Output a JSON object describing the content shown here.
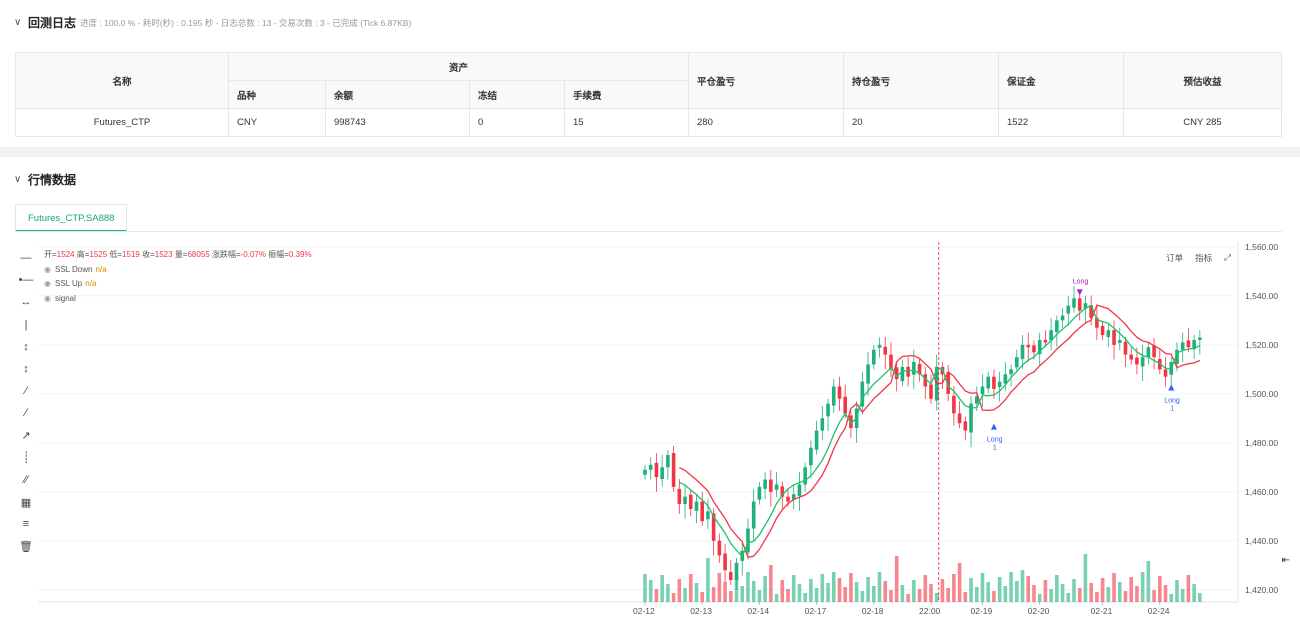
{
  "log": {
    "title": "回测日志",
    "subtitle": "进度 : 100.0 % - 耗时(秒) : 0.195 秒 - 日志总数 : 13 - 交易次数 : 3 - 已完成 (Tick 6.87KB)",
    "headers": {
      "name": "名称",
      "assets": "资产",
      "variety": "品种",
      "balance": "余额",
      "frozen": "冻结",
      "fee": "手续费",
      "close_pl": "平仓盈亏",
      "pos_pl": "持仓盈亏",
      "margin": "保证金",
      "est": "预估收益"
    },
    "row": {
      "name": "Futures_CTP",
      "variety": "CNY",
      "balance": "998743",
      "frozen": "0",
      "fee": "15",
      "close_pl": "280",
      "pos_pl": "20",
      "margin": "1522",
      "est": "CNY 285"
    }
  },
  "market": {
    "title": "行情数据",
    "tab": "Futures_CTP.SA888",
    "ohlc": {
      "open_l": "开=",
      "open": "1524",
      "high_l": "高=",
      "high": "1525",
      "low_l": "低=",
      "low": "1519",
      "close_l": "收=",
      "close": "1523",
      "vol_l": "量=",
      "vol": "68055",
      "chg_l": "涨跌幅=",
      "chg": "-0.07%",
      "amp_l": "振幅=",
      "amp": "0.39%"
    },
    "legend": [
      {
        "name": "SSL Down",
        "value": "n/a"
      },
      {
        "name": "SSL Up",
        "value": "n/a"
      },
      {
        "name": "signal",
        "value": ""
      }
    ],
    "buttons": {
      "order": "订单",
      "indicator": "指标"
    }
  },
  "chart_data": {
    "type": "candlestick",
    "x_tick_labels": [
      "02-12",
      "02-13",
      "02-14",
      "02-17",
      "02-18",
      "22:00",
      "02-19",
      "02-20",
      "02-21",
      "02-24"
    ],
    "y_tick_labels": [
      "1,420.00",
      "1,440.00",
      "1,460.00",
      "1,480.00",
      "1,500.00",
      "1,520.00",
      "1,540.00",
      "1,560.00"
    ],
    "ylim": [
      1415,
      1562
    ],
    "series_names": [
      "SSL Down",
      "SSL Up"
    ],
    "colors": {
      "up": "#26a69a",
      "up_fill": "#1fb07e",
      "down": "#f23645",
      "ssl_down": "#f23645",
      "ssl_up": "#1cc46a",
      "vline": "#f23645"
    },
    "candle_closes": [
      1469,
      1471,
      1466,
      1470,
      1475,
      1462,
      1455,
      1458,
      1453,
      1456,
      1448,
      1452,
      1440,
      1434,
      1428,
      1424,
      1431,
      1436,
      1445,
      1456,
      1462,
      1465,
      1460,
      1463,
      1458,
      1456,
      1459,
      1463,
      1470,
      1478,
      1485,
      1490,
      1496,
      1503,
      1498,
      1492,
      1486,
      1494,
      1505,
      1512,
      1518,
      1520,
      1516,
      1510,
      1506,
      1511,
      1507,
      1513,
      1508,
      1503,
      1498,
      1511,
      1508,
      1500,
      1492,
      1488,
      1485,
      1496,
      1499,
      1503,
      1507,
      1502,
      1505,
      1508,
      1510,
      1515,
      1520,
      1519,
      1517,
      1522,
      1521,
      1526,
      1530,
      1532,
      1536,
      1539,
      1534,
      1537,
      1531,
      1527,
      1524,
      1526,
      1520,
      1522,
      1516,
      1514,
      1512,
      1515,
      1519,
      1515,
      1510,
      1507,
      1513,
      1518,
      1521,
      1519,
      1522,
      1523
    ],
    "signals": [
      {
        "label": "Long",
        "sub": "1",
        "index": 61,
        "price": 1487
      },
      {
        "label": "Long",
        "sub": "",
        "index": 76,
        "price": 1541
      },
      {
        "label": "Long",
        "sub": "1",
        "index": 92,
        "price": 1503
      }
    ]
  }
}
